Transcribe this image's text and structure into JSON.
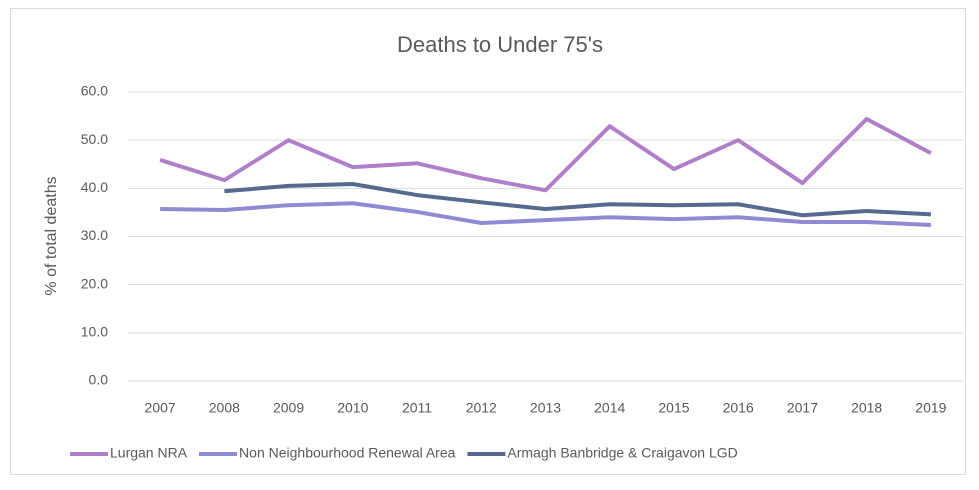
{
  "chart_data": {
    "type": "line",
    "title": "Deaths to Under 75's",
    "y_label": "% of total deaths",
    "categories": [
      "2007",
      "2008",
      "2009",
      "2010",
      "2011",
      "2012",
      "2013",
      "2014",
      "2015",
      "2016",
      "2017",
      "2018",
      "2019"
    ],
    "series": [
      {
        "name": "Lurgan NRA",
        "color": "#b07fc8",
        "values": [
          45.9,
          41.7,
          50.0,
          44.4,
          45.2,
          42.1,
          39.6,
          52.9,
          44.0,
          50.0,
          41.1,
          54.4,
          47.3
        ]
      },
      {
        "name": "Non Neighbourhood Renewal Area",
        "color": "#8f8ad2",
        "values": [
          35.7,
          35.5,
          36.5,
          36.9,
          35.1,
          32.8,
          33.4,
          34.0,
          33.6,
          34.0,
          33.0,
          33.0,
          32.4
        ]
      },
      {
        "name": "Armagh Banbridge & Craigavon LGD",
        "color": "#56698e",
        "values": [
          null,
          39.4,
          40.5,
          40.9,
          38.6,
          37.1,
          35.7,
          36.7,
          36.5,
          36.7,
          34.4,
          35.3,
          34.6
        ]
      }
    ],
    "ylim": [
      0,
      60
    ],
    "yticks": [
      {
        "value": 0,
        "label": "0.0"
      },
      {
        "value": 10,
        "label": "10.0"
      },
      {
        "value": 20,
        "label": "20.0"
      },
      {
        "value": 30,
        "label": "30.0"
      },
      {
        "value": 40,
        "label": "40.0"
      },
      {
        "value": 50,
        "label": "50.0"
      },
      {
        "value": 60,
        "label": "60.0"
      }
    ],
    "grid": true,
    "legend": "bottom"
  }
}
